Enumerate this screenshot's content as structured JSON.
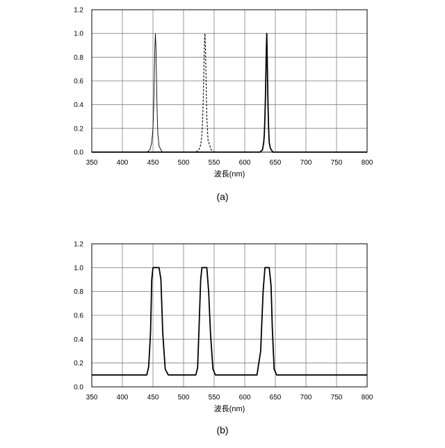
{
  "chart_data": [
    {
      "type": "line",
      "panel_label": "(a)",
      "xlabel": "波長(nm)",
      "ylabel": "",
      "xlim": [
        350,
        800
      ],
      "ylim": [
        0,
        1.2
      ],
      "xticks": [
        "350",
        "400",
        "450",
        "500",
        "550",
        "600",
        "650",
        "700",
        "750",
        "800"
      ],
      "yticks": [
        "0.0",
        "0.2",
        "0.4",
        "0.6",
        "0.8",
        "1.0",
        "1.2"
      ],
      "grid": true,
      "series": [
        {
          "style": "thin-solid",
          "x": [
            350,
            440,
            445,
            448,
            450,
            451,
            452,
            453,
            454,
            455,
            456,
            457,
            458,
            460,
            465,
            800
          ],
          "y": [
            0,
            0,
            0.02,
            0.08,
            0.2,
            0.35,
            0.6,
            0.85,
            1.0,
            0.85,
            0.55,
            0.3,
            0.15,
            0.05,
            0,
            0
          ]
        },
        {
          "style": "dashed",
          "x": [
            350,
            520,
            525,
            528,
            530,
            531,
            532,
            533,
            534,
            535,
            536,
            537,
            538,
            540,
            545,
            550,
            800
          ],
          "y": [
            0,
            0,
            0.02,
            0.06,
            0.15,
            0.25,
            0.4,
            0.65,
            0.9,
            1.0,
            0.85,
            0.55,
            0.3,
            0.1,
            0.02,
            0,
            0
          ]
        },
        {
          "style": "bold-solid",
          "x": [
            350,
            625,
            629,
            631,
            632,
            633,
            634,
            635,
            636,
            637,
            638,
            639,
            640,
            642,
            646,
            800
          ],
          "y": [
            0,
            0,
            0.02,
            0.08,
            0.15,
            0.3,
            0.5,
            0.8,
            1.0,
            0.7,
            0.4,
            0.2,
            0.08,
            0.03,
            0,
            0
          ]
        }
      ]
    },
    {
      "type": "line",
      "panel_label": "(b)",
      "xlabel": "波長(nm)",
      "ylabel": "",
      "xlim": [
        350,
        800
      ],
      "ylim": [
        0,
        1.2
      ],
      "xticks": [
        "350",
        "400",
        "450",
        "500",
        "550",
        "600",
        "650",
        "700",
        "750",
        "800"
      ],
      "yticks": [
        "0.0",
        "0.2",
        "0.4",
        "0.6",
        "0.8",
        "1.0",
        "1.2"
      ],
      "grid": true,
      "series": [
        {
          "style": "bold-solid",
          "x": [
            350,
            440,
            443,
            446,
            448,
            450,
            453,
            455,
            460,
            463,
            466,
            470,
            475,
            480,
            520,
            523,
            526,
            528,
            530,
            533,
            535,
            538,
            541,
            544,
            548,
            552,
            557,
            620,
            626,
            630,
            633,
            635,
            638,
            640,
            643,
            645,
            648,
            652,
            657,
            700,
            800
          ],
          "y": [
            0.1,
            0.1,
            0.17,
            0.45,
            0.9,
            1.0,
            1.0,
            1.0,
            1.0,
            0.9,
            0.45,
            0.15,
            0.1,
            0.1,
            0.1,
            0.16,
            0.6,
            0.9,
            1.0,
            1.0,
            1.0,
            1.0,
            0.8,
            0.45,
            0.15,
            0.1,
            0.1,
            0.1,
            0.3,
            0.8,
            1.0,
            1.0,
            1.0,
            1.0,
            0.85,
            0.5,
            0.15,
            0.1,
            0.1,
            0.1,
            0.1
          ]
        }
      ]
    }
  ]
}
